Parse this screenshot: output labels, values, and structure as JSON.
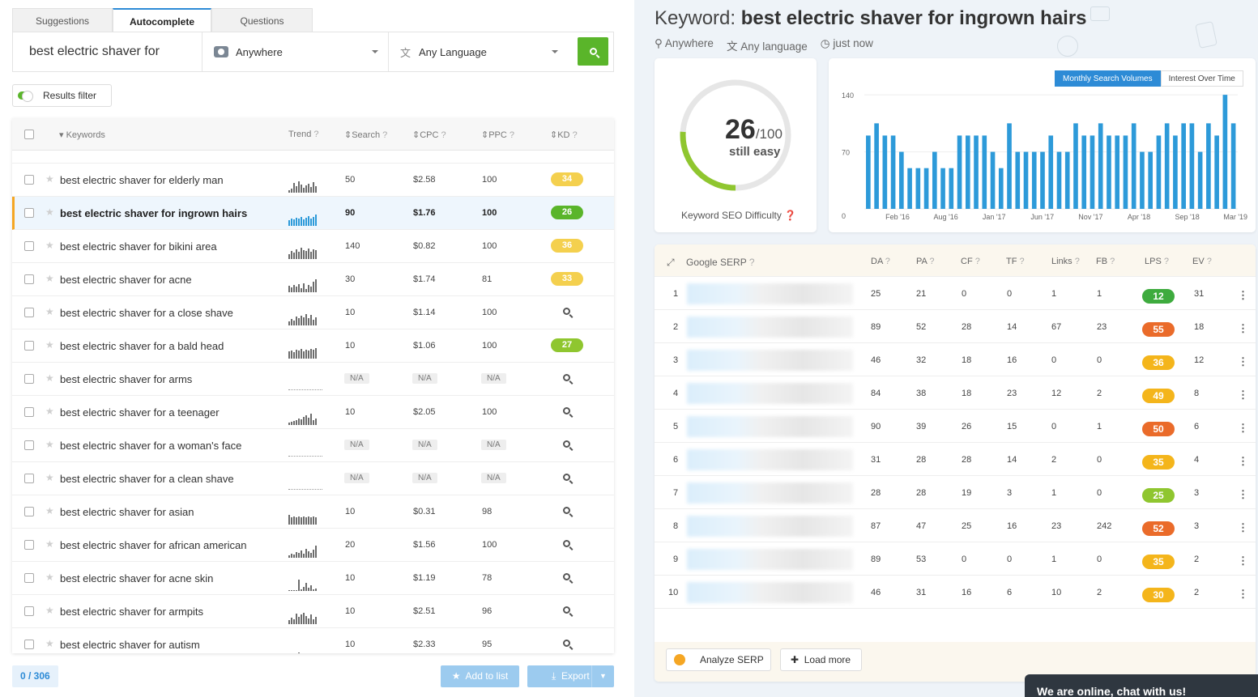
{
  "tabs": [
    "Suggestions",
    "Autocomplete",
    "Questions"
  ],
  "search": {
    "query": "best electric shaver for",
    "location": "Anywhere",
    "language": "Any Language"
  },
  "results_filter": "Results filter",
  "table": {
    "headers": {
      "keywords": "Keywords",
      "trend": "Trend",
      "search": "Search",
      "cpc": "CPC",
      "ppc": "PPC",
      "kd": "KD"
    },
    "rows": [
      {
        "keyword": "best electric shaver for elderly man",
        "search": "50",
        "cpc": "$2.58",
        "ppc": "100",
        "kd": "34",
        "kd_color": "y",
        "trend": [
          3,
          5,
          12,
          8,
          14,
          10,
          6,
          9,
          11,
          7,
          13,
          8
        ]
      },
      {
        "keyword": "best electric shaver for ingrown hairs",
        "search": "90",
        "cpc": "$1.76",
        "ppc": "100",
        "kd": "26",
        "kd_color": "dg",
        "selected": true,
        "trend": [
          7,
          9,
          8,
          10,
          9,
          11,
          8,
          10,
          12,
          9,
          11,
          14
        ]
      },
      {
        "keyword": "best electric shaver for bikini area",
        "search": "140",
        "cpc": "$0.82",
        "ppc": "100",
        "kd": "36",
        "kd_color": "y",
        "trend": [
          6,
          10,
          8,
          12,
          9,
          14,
          11,
          10,
          13,
          9,
          12,
          11
        ]
      },
      {
        "keyword": "best electric shaver for acne",
        "search": "30",
        "cpc": "$1.74",
        "ppc": "81",
        "kd": "33",
        "kd_color": "y",
        "trend": [
          8,
          6,
          9,
          7,
          10,
          5,
          11,
          4,
          9,
          7,
          13,
          16
        ]
      },
      {
        "keyword": "best electric shaver for a close shave",
        "search": "10",
        "cpc": "$1.14",
        "ppc": "100",
        "kd": "",
        "trend": [
          5,
          8,
          6,
          11,
          9,
          12,
          10,
          14,
          9,
          13,
          7,
          10
        ]
      },
      {
        "keyword": "best electric shaver for a bald head",
        "search": "10",
        "cpc": "$1.06",
        "ppc": "100",
        "kd": "27",
        "kd_color": "g",
        "trend": [
          9,
          10,
          8,
          11,
          10,
          12,
          9,
          11,
          10,
          12,
          11,
          13
        ]
      },
      {
        "keyword": "best electric shaver for arms",
        "search": "N/A",
        "cpc": "N/A",
        "ppc": "N/A",
        "kd": "",
        "trend": []
      },
      {
        "keyword": "best electric shaver for a teenager",
        "search": "10",
        "cpc": "$2.05",
        "ppc": "100",
        "kd": "",
        "trend": [
          3,
          4,
          5,
          6,
          8,
          7,
          10,
          12,
          9,
          14,
          6,
          8
        ]
      },
      {
        "keyword": "best electric shaver for a woman's face",
        "search": "N/A",
        "cpc": "N/A",
        "ppc": "N/A",
        "kd": "",
        "trend": []
      },
      {
        "keyword": "best electric shaver for a clean shave",
        "search": "N/A",
        "cpc": "N/A",
        "ppc": "N/A",
        "kd": "",
        "trend": []
      },
      {
        "keyword": "best electric shaver for asian",
        "search": "10",
        "cpc": "$0.31",
        "ppc": "98",
        "kd": "",
        "trend": [
          12,
          9,
          10,
          9,
          10,
          9,
          10,
          9,
          10,
          9,
          10,
          9
        ]
      },
      {
        "keyword": "best electric shaver for african american",
        "search": "20",
        "cpc": "$1.56",
        "ppc": "100",
        "kd": "",
        "trend": [
          3,
          5,
          4,
          7,
          6,
          9,
          5,
          11,
          8,
          6,
          10,
          15
        ]
      },
      {
        "keyword": "best electric shaver for acne skin",
        "search": "10",
        "cpc": "$1.19",
        "ppc": "78",
        "kd": "",
        "trend": [
          1,
          1,
          1,
          1,
          14,
          2,
          5,
          10,
          4,
          7,
          2,
          3
        ]
      },
      {
        "keyword": "best electric shaver for armpits",
        "search": "10",
        "cpc": "$2.51",
        "ppc": "96",
        "kd": "",
        "trend": [
          5,
          8,
          6,
          13,
          9,
          12,
          14,
          10,
          7,
          12,
          6,
          9
        ]
      },
      {
        "keyword": "best electric shaver for autism",
        "search": "10",
        "cpc": "$2.33",
        "ppc": "95",
        "kd": "",
        "trend": [
          1,
          1,
          1,
          1,
          6,
          1,
          1,
          1,
          1,
          1,
          1,
          1
        ]
      }
    ]
  },
  "footer": {
    "count": "0 / 306",
    "add_to_list": "Add to list",
    "export": "Export"
  },
  "keyword": {
    "prefix": "Keyword:",
    "value": "best electric shaver for ingrown hairs",
    "location": "Anywhere",
    "language": "Any language",
    "time": "just now"
  },
  "difficulty": {
    "value": "26",
    "max": "/100",
    "label": "still easy",
    "caption": "Keyword SEO Difficulty",
    "fraction": 0.26
  },
  "volume_chart": {
    "toggle_on": "Monthly Search Volumes",
    "toggle_off": "Interest Over Time"
  },
  "chart_data": {
    "type": "bar",
    "y_ticks": [
      "140",
      "70",
      "0"
    ],
    "ylim": [
      0,
      160
    ],
    "x_labels": [
      "Feb '16",
      "Aug '16",
      "Jan '17",
      "Jun '17",
      "Nov '17",
      "Apr '18",
      "Sep '18",
      "Mar '19"
    ],
    "values": [
      90,
      105,
      90,
      90,
      70,
      50,
      50,
      50,
      70,
      50,
      50,
      90,
      90,
      90,
      90,
      70,
      50,
      105,
      70,
      70,
      70,
      70,
      90,
      70,
      70,
      105,
      90,
      90,
      105,
      90,
      90,
      90,
      105,
      70,
      70,
      90,
      105,
      90,
      105,
      105,
      70,
      105,
      90,
      140,
      105
    ]
  },
  "serp": {
    "headers": {
      "google_serp": "Google SERP",
      "da": "DA",
      "pa": "PA",
      "cf": "CF",
      "tf": "TF",
      "links": "Links",
      "fb": "FB",
      "lps": "LPS",
      "ev": "EV"
    },
    "rows": [
      {
        "n": "1",
        "da": "25",
        "pa": "21",
        "cf": "0",
        "tf": "0",
        "links": "1",
        "fb": "1",
        "lps": "12",
        "lps_color": "g",
        "ev": "31"
      },
      {
        "n": "2",
        "da": "89",
        "pa": "52",
        "cf": "28",
        "tf": "14",
        "links": "67",
        "fb": "23",
        "lps": "55",
        "lps_color": "o",
        "ev": "18"
      },
      {
        "n": "3",
        "da": "46",
        "pa": "32",
        "cf": "18",
        "tf": "16",
        "links": "0",
        "fb": "0",
        "lps": "36",
        "lps_color": "y",
        "ev": "12"
      },
      {
        "n": "4",
        "da": "84",
        "pa": "38",
        "cf": "18",
        "tf": "23",
        "links": "12",
        "fb": "2",
        "lps": "49",
        "lps_color": "y",
        "ev": "8"
      },
      {
        "n": "5",
        "da": "90",
        "pa": "39",
        "cf": "26",
        "tf": "15",
        "links": "0",
        "fb": "1",
        "lps": "50",
        "lps_color": "o",
        "ev": "6"
      },
      {
        "n": "6",
        "da": "31",
        "pa": "28",
        "cf": "28",
        "tf": "14",
        "links": "2",
        "fb": "0",
        "lps": "35",
        "lps_color": "y",
        "ev": "4"
      },
      {
        "n": "7",
        "da": "28",
        "pa": "28",
        "cf": "19",
        "tf": "3",
        "links": "1",
        "fb": "0",
        "lps": "25",
        "lps_color": "lg",
        "ev": "3"
      },
      {
        "n": "8",
        "da": "87",
        "pa": "47",
        "cf": "25",
        "tf": "16",
        "links": "23",
        "fb": "242",
        "lps": "52",
        "lps_color": "o",
        "ev": "3"
      },
      {
        "n": "9",
        "da": "89",
        "pa": "53",
        "cf": "0",
        "tf": "0",
        "links": "1",
        "fb": "0",
        "lps": "35",
        "lps_color": "y",
        "ev": "2"
      },
      {
        "n": "10",
        "da": "46",
        "pa": "31",
        "cf": "16",
        "tf": "6",
        "links": "10",
        "fb": "2",
        "lps": "30",
        "lps_color": "y",
        "ev": "2"
      }
    ],
    "analyze": "Analyze SERP",
    "load_more": "Load more"
  },
  "chat": "We are online, chat with us!"
}
